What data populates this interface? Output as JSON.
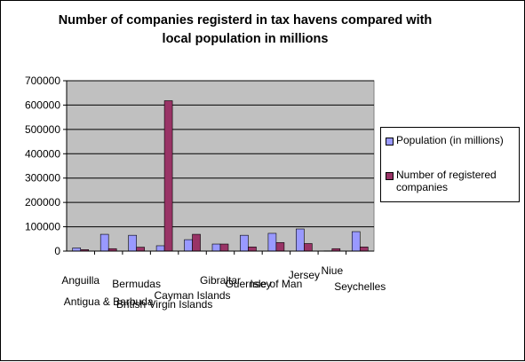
{
  "chart_data": {
    "type": "bar",
    "title": "Number of companies registerd in tax havens compared with local population in millions",
    "xlabel": "",
    "ylabel": "",
    "ylim": [
      0,
      700000
    ],
    "ytick_step": 100000,
    "y_ticks": [
      "0",
      "100000",
      "200000",
      "300000",
      "400000",
      "500000",
      "600000",
      "700000"
    ],
    "grid": true,
    "legend_position": "right",
    "categories": [
      "Anguilla",
      "Antigua & Barbuda",
      "Bermudas",
      "British Virgin Islands",
      "Cayman Islands",
      "Gibraltar",
      "Guernsey",
      "Isle of Man",
      "Jersey",
      "Niue",
      "Seychelles"
    ],
    "series": [
      {
        "name": "Population (in millions)",
        "color": "#9999ff",
        "values": [
          13000,
          69000,
          65000,
          22000,
          47000,
          29000,
          65000,
          73000,
          91000,
          1000,
          80000
        ]
      },
      {
        "name": "Number of registered companies",
        "color": "#993366",
        "values": [
          6000,
          10000,
          16000,
          618000,
          69000,
          29000,
          17000,
          35000,
          31000,
          10000,
          17000
        ]
      }
    ],
    "colors": {
      "plot_background": "#c0c0c0",
      "gridline": "#000000"
    }
  }
}
